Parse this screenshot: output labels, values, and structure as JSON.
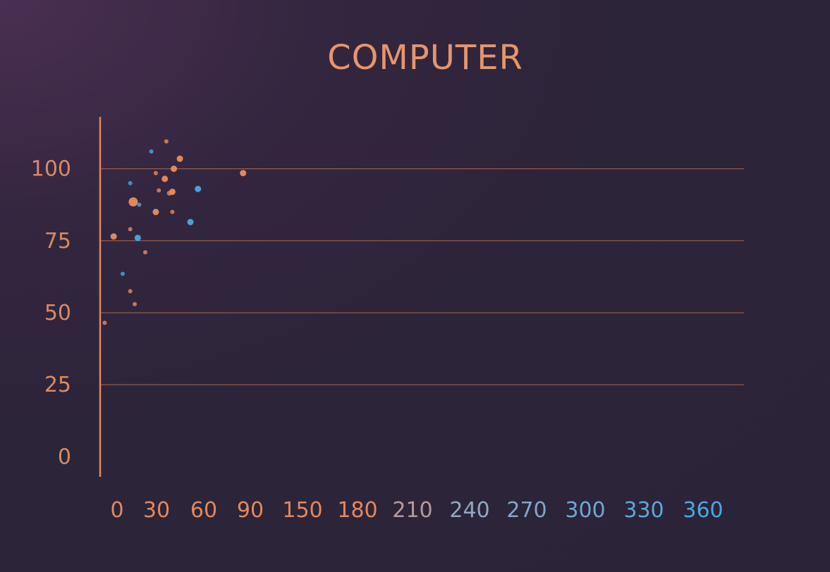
{
  "chart_data": {
    "type": "scatter",
    "title": "COMPUTER",
    "xlabel": "",
    "ylabel": "",
    "x_ticks": [
      "0",
      "30",
      "60",
      "90",
      "150",
      "180",
      "210",
      "240",
      "270",
      "300",
      "330",
      "360"
    ],
    "y_ticks": [
      0,
      25,
      50,
      75,
      100
    ],
    "ylim": [
      -7,
      118
    ],
    "grid": "horizontal",
    "colors": {
      "orange": "#ec8c5e",
      "blue": "#4aa8e0",
      "axis": "#e3885d",
      "grid": "#a9674f",
      "x_axis_gradient": [
        "#e3885d",
        "#9aa7c0",
        "#4aa8e0"
      ]
    },
    "series": [
      {
        "color": "orange",
        "points": [
          {
            "x": 3,
            "y": 46.5,
            "size": 3
          },
          {
            "x": 9,
            "y": 76.5,
            "size": 4.5
          },
          {
            "x": 20,
            "y": 57.5,
            "size": 3
          },
          {
            "x": 20,
            "y": 79,
            "size": 3
          },
          {
            "x": 22,
            "y": 88.5,
            "size": 6.5
          },
          {
            "x": 23,
            "y": 53,
            "size": 3
          },
          {
            "x": 30,
            "y": 71,
            "size": 3
          },
          {
            "x": 37,
            "y": 85,
            "size": 4.5
          },
          {
            "x": 37,
            "y": 98.5,
            "size": 3
          },
          {
            "x": 39,
            "y": 92.5,
            "size": 3
          },
          {
            "x": 43,
            "y": 96.5,
            "size": 4.5
          },
          {
            "x": 44,
            "y": 109.5,
            "size": 3
          },
          {
            "x": 46,
            "y": 91.5,
            "size": 3.5
          },
          {
            "x": 48,
            "y": 92,
            "size": 4.5
          },
          {
            "x": 48,
            "y": 85,
            "size": 3
          },
          {
            "x": 49,
            "y": 100,
            "size": 4.5
          },
          {
            "x": 53,
            "y": 103.5,
            "size": 4.5
          },
          {
            "x": 95,
            "y": 98.5,
            "size": 4.5
          }
        ]
      },
      {
        "color": "blue",
        "points": [
          {
            "x": 15,
            "y": 63.5,
            "size": 3
          },
          {
            "x": 20,
            "y": 95,
            "size": 3
          },
          {
            "x": 26,
            "y": 87.5,
            "size": 3
          },
          {
            "x": 25,
            "y": 76,
            "size": 4.5
          },
          {
            "x": 34,
            "y": 106,
            "size": 3
          },
          {
            "x": 60,
            "y": 81.5,
            "size": 4.5
          },
          {
            "x": 65,
            "y": 93,
            "size": 4.5
          }
        ]
      }
    ]
  }
}
